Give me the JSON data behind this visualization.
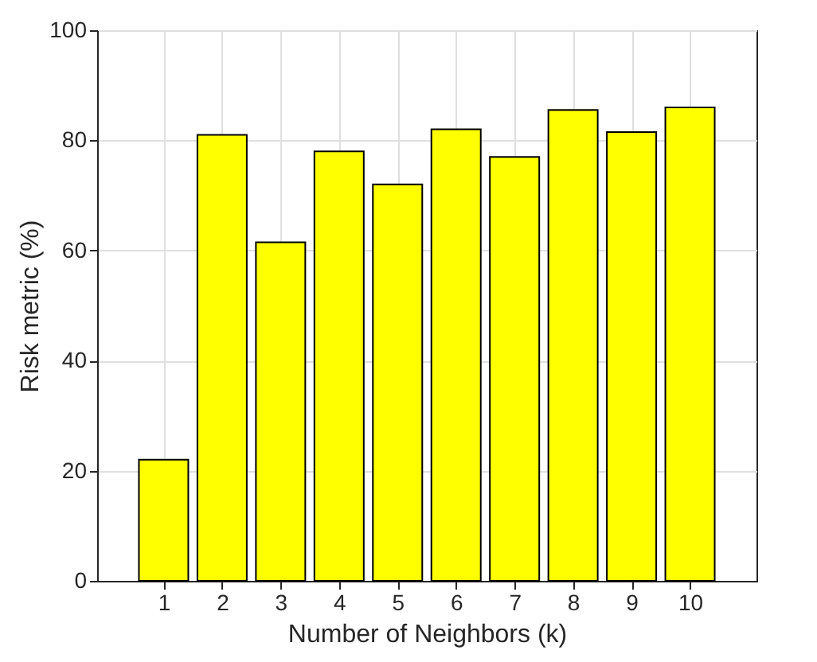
{
  "chart_data": {
    "type": "bar",
    "xlabel": "Number of Neighbors (k)",
    "ylabel": "Risk metric (%)",
    "categories": [
      "1",
      "2",
      "3",
      "4",
      "5",
      "6",
      "7",
      "8",
      "9",
      "10"
    ],
    "values": [
      22,
      81,
      61.5,
      78,
      72,
      82,
      77,
      85.5,
      81.5,
      86
    ],
    "color": "#ffff00",
    "ylim": [
      0,
      100
    ],
    "yticks": [
      0,
      20,
      40,
      60,
      80,
      100
    ],
    "grid": true
  }
}
